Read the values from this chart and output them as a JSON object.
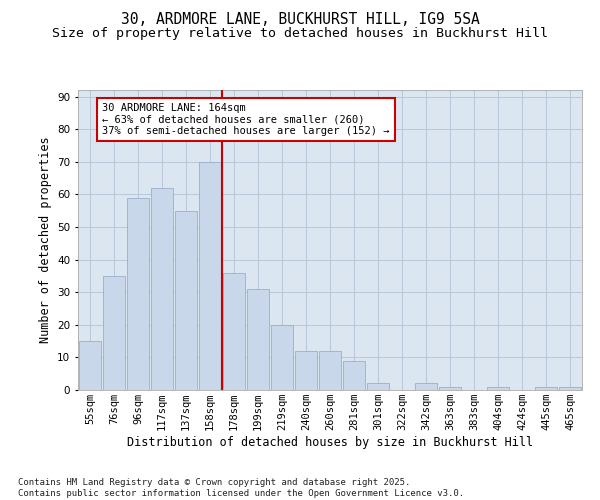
{
  "title1": "30, ARDMORE LANE, BUCKHURST HILL, IG9 5SA",
  "title2": "Size of property relative to detached houses in Buckhurst Hill",
  "xlabel": "Distribution of detached houses by size in Buckhurst Hill",
  "ylabel": "Number of detached properties",
  "categories": [
    "55sqm",
    "76sqm",
    "96sqm",
    "117sqm",
    "137sqm",
    "158sqm",
    "178sqm",
    "199sqm",
    "219sqm",
    "240sqm",
    "260sqm",
    "281sqm",
    "301sqm",
    "322sqm",
    "342sqm",
    "363sqm",
    "383sqm",
    "404sqm",
    "424sqm",
    "445sqm",
    "465sqm"
  ],
  "values": [
    15,
    35,
    59,
    62,
    55,
    70,
    36,
    31,
    20,
    12,
    12,
    9,
    2,
    0,
    2,
    1,
    0,
    1,
    0,
    1,
    1
  ],
  "bar_color": "#c8d8ea",
  "bar_edge_color": "#9ab0c8",
  "grid_color": "#b8c8d8",
  "background_color": "#dce6f0",
  "vline_x": 5.5,
  "vline_color": "#cc0000",
  "annotation_text": "30 ARDMORE LANE: 164sqm\n← 63% of detached houses are smaller (260)\n37% of semi-detached houses are larger (152) →",
  "annotation_box_facecolor": "#ffffff",
  "annotation_box_edgecolor": "#cc0000",
  "ylim": [
    0,
    92
  ],
  "yticks": [
    0,
    10,
    20,
    30,
    40,
    50,
    60,
    70,
    80,
    90
  ],
  "footer": "Contains HM Land Registry data © Crown copyright and database right 2025.\nContains public sector information licensed under the Open Government Licence v3.0.",
  "fig_facecolor": "#ffffff",
  "title_fontsize": 10.5,
  "subtitle_fontsize": 9.5,
  "axis_label_fontsize": 8.5,
  "tick_fontsize": 7.5,
  "annotation_fontsize": 7.5,
  "footer_fontsize": 6.5
}
